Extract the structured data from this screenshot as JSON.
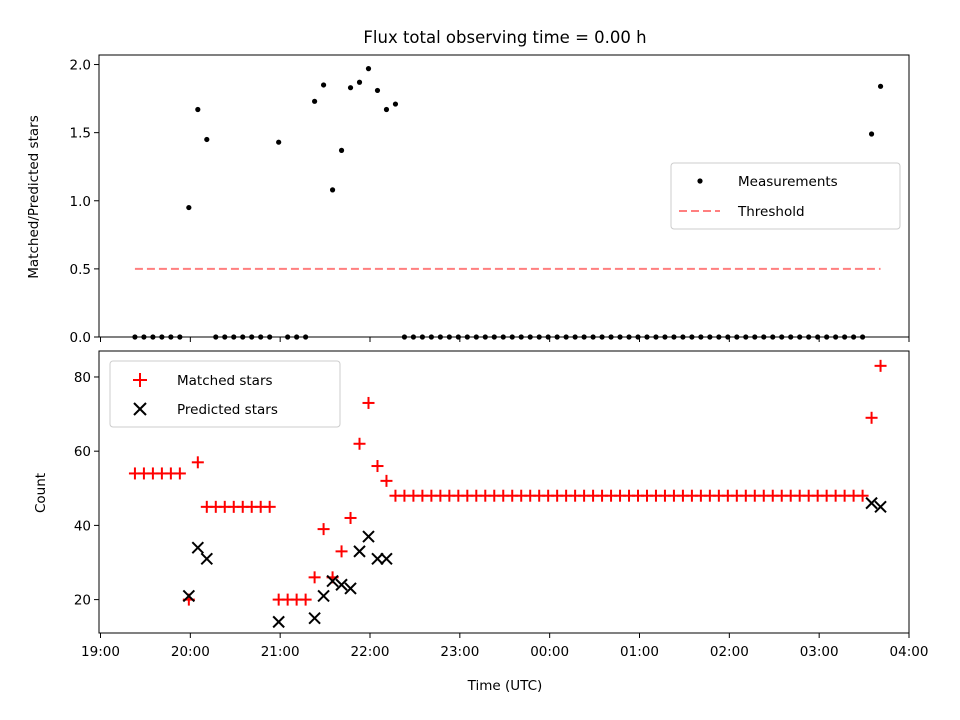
{
  "chart_data": [
    {
      "type": "scatter",
      "title": "Flux total observing time = 0.00 h",
      "ylabel": "Matched/Predicted stars",
      "xlim": [
        "18:59",
        "04:00"
      ],
      "ylim": [
        0,
        2.07
      ],
      "yticks": [
        "0.0",
        "0.5",
        "1.0",
        "1.5",
        "2.0"
      ],
      "ytick_values": [
        0,
        0.5,
        1.0,
        1.5,
        2.0
      ],
      "legend": {
        "location": "center-right"
      },
      "series": [
        {
          "name": "Measurements",
          "kind": "scatter",
          "color": "#000000",
          "x": [
            "19:23",
            "19:29",
            "19:35",
            "19:41",
            "19:47",
            "19:53",
            "19:59",
            "20:05",
            "20:11",
            "20:17",
            "20:23",
            "20:29",
            "20:35",
            "20:41",
            "20:47",
            "20:53",
            "20:59",
            "21:05",
            "21:11",
            "21:17",
            "21:23",
            "21:29",
            "21:35",
            "21:41",
            "21:47",
            "21:53",
            "21:59",
            "22:05",
            "22:11",
            "22:17",
            "22:23",
            "22:29",
            "22:35",
            "22:41",
            "22:47",
            "22:53",
            "22:59",
            "23:05",
            "23:11",
            "23:17",
            "23:23",
            "23:29",
            "23:35",
            "23:41",
            "23:47",
            "23:53",
            "23:59",
            "00:05",
            "00:11",
            "00:17",
            "00:23",
            "00:29",
            "00:35",
            "00:41",
            "00:47",
            "00:53",
            "00:59",
            "01:05",
            "01:11",
            "01:17",
            "01:23",
            "01:29",
            "01:35",
            "01:41",
            "01:47",
            "01:53",
            "01:59",
            "02:05",
            "02:11",
            "02:17",
            "02:23",
            "02:29",
            "02:35",
            "02:41",
            "02:47",
            "02:53",
            "02:59",
            "03:05",
            "03:11",
            "03:17",
            "03:23",
            "03:29",
            "03:35",
            "03:41"
          ],
          "y": [
            0,
            0,
            0,
            0,
            0,
            0,
            0.95,
            1.67,
            1.45,
            0,
            0,
            0,
            0,
            0,
            0,
            0,
            1.43,
            0,
            0,
            0,
            1.73,
            1.85,
            1.08,
            1.37,
            1.83,
            1.87,
            1.97,
            1.81,
            1.67,
            1.71,
            0,
            0,
            0,
            0,
            0,
            0,
            0,
            0,
            0,
            0,
            0,
            0,
            0,
            0,
            0,
            0,
            0,
            0,
            0,
            0,
            0,
            0,
            0,
            0,
            0,
            0,
            0,
            0,
            0,
            0,
            0,
            0,
            0,
            0,
            0,
            0,
            0,
            0,
            0,
            0,
            0,
            0,
            0,
            0,
            0,
            0,
            0,
            0,
            0,
            0,
            0,
            0,
            1.49,
            1.84
          ]
        },
        {
          "name": "Threshold",
          "kind": "line",
          "dash": true,
          "color": "#ff7f7f",
          "x": [
            "19:23",
            "03:41"
          ],
          "y": [
            0.5,
            0.5
          ]
        }
      ]
    },
    {
      "type": "scatter",
      "xlabel": "Time (UTC)",
      "ylabel": "Count",
      "xlim": [
        "18:59",
        "04:00"
      ],
      "ylim": [
        11,
        87
      ],
      "xticks": [
        "19:00",
        "20:00",
        "21:00",
        "22:00",
        "23:00",
        "00:00",
        "01:00",
        "02:00",
        "03:00",
        "04:00"
      ],
      "yticks": [
        "20",
        "40",
        "60",
        "80"
      ],
      "ytick_values": [
        20,
        40,
        60,
        80
      ],
      "legend": {
        "location": "top-left"
      },
      "series": [
        {
          "name": "Matched stars",
          "marker": "+",
          "color": "#ff0000",
          "x": [
            "19:23",
            "19:29",
            "19:35",
            "19:41",
            "19:47",
            "19:53",
            "19:59",
            "20:05",
            "20:11",
            "20:17",
            "20:23",
            "20:29",
            "20:35",
            "20:41",
            "20:47",
            "20:53",
            "20:59",
            "21:05",
            "21:11",
            "21:17",
            "21:23",
            "21:29",
            "21:35",
            "21:41",
            "21:47",
            "21:53",
            "21:59",
            "22:05",
            "22:11",
            "22:17",
            "22:23",
            "22:29",
            "22:35",
            "22:41",
            "22:47",
            "22:53",
            "22:59",
            "23:05",
            "23:11",
            "23:17",
            "23:23",
            "23:29",
            "23:35",
            "23:41",
            "23:47",
            "23:53",
            "23:59",
            "00:05",
            "00:11",
            "00:17",
            "00:23",
            "00:29",
            "00:35",
            "00:41",
            "00:47",
            "00:53",
            "00:59",
            "01:05",
            "01:11",
            "01:17",
            "01:23",
            "01:29",
            "01:35",
            "01:41",
            "01:47",
            "01:53",
            "01:59",
            "02:05",
            "02:11",
            "02:17",
            "02:23",
            "02:29",
            "02:35",
            "02:41",
            "02:47",
            "02:53",
            "02:59",
            "03:05",
            "03:11",
            "03:17",
            "03:23",
            "03:29",
            "03:35",
            "03:41"
          ],
          "y": [
            54,
            54,
            54,
            54,
            54,
            54,
            20,
            57,
            45,
            45,
            45,
            45,
            45,
            45,
            45,
            45,
            20,
            20,
            20,
            20,
            26,
            39,
            26,
            33,
            42,
            62,
            73,
            56,
            52,
            48,
            48,
            48,
            48,
            48,
            48,
            48,
            48,
            48,
            48,
            48,
            48,
            48,
            48,
            48,
            48,
            48,
            48,
            48,
            48,
            48,
            48,
            48,
            48,
            48,
            48,
            48,
            48,
            48,
            48,
            48,
            48,
            48,
            48,
            48,
            48,
            48,
            48,
            48,
            48,
            48,
            48,
            48,
            48,
            48,
            48,
            48,
            48,
            48,
            48,
            48,
            48,
            48,
            69,
            83
          ]
        },
        {
          "name": "Predicted stars",
          "marker": "x",
          "color": "#000000",
          "x": [
            "19:59",
            "20:05",
            "20:11",
            "20:59",
            "21:23",
            "21:29",
            "21:35",
            "21:41",
            "21:47",
            "21:53",
            "21:59",
            "22:05",
            "22:11",
            "03:35",
            "03:41"
          ],
          "y": [
            21,
            34,
            31,
            14,
            15,
            21,
            25,
            24,
            23,
            33,
            37,
            31,
            31,
            46,
            45
          ]
        }
      ]
    }
  ]
}
